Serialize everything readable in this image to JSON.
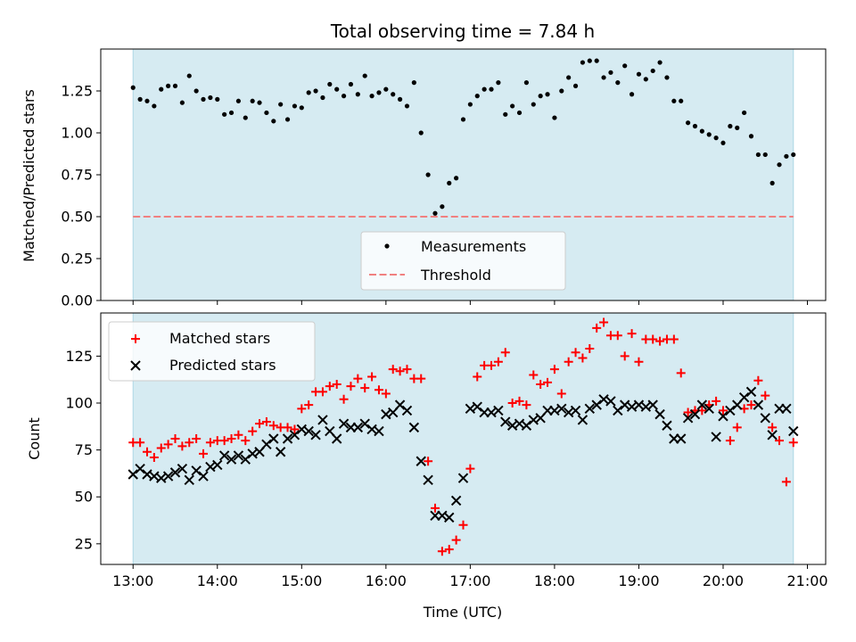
{
  "chart_data": [
    {
      "type": "scatter",
      "title": "Total observing time = 7.84 h",
      "xlabel": "",
      "ylabel": "Matched/Predicted stars",
      "xlim": [
        "12:37",
        "21:13"
      ],
      "ylim": [
        0.0,
        1.5
      ],
      "yticks": [
        0.0,
        0.25,
        0.5,
        0.75,
        1.0,
        1.25
      ],
      "ytick_labels": [
        "0.00",
        "0.25",
        "0.50",
        "0.75",
        "1.00",
        "1.25"
      ],
      "xticks": [
        "13:00",
        "14:00",
        "15:00",
        "16:00",
        "17:00",
        "18:00",
        "19:00",
        "20:00",
        "21:00"
      ],
      "shaded_span": [
        "13:00",
        "20:50"
      ],
      "threshold": 0.5,
      "legend_position": "lower center",
      "series": [
        {
          "name": "Measurements",
          "x": [
            "13:00",
            "13:05",
            "13:10",
            "13:15",
            "13:20",
            "13:25",
            "13:30",
            "13:35",
            "13:40",
            "13:45",
            "13:50",
            "13:55",
            "14:00",
            "14:05",
            "14:10",
            "14:15",
            "14:20",
            "14:25",
            "14:30",
            "14:35",
            "14:40",
            "14:45",
            "14:50",
            "14:55",
            "15:00",
            "15:05",
            "15:10",
            "15:15",
            "15:20",
            "15:25",
            "15:30",
            "15:35",
            "15:40",
            "15:45",
            "15:50",
            "15:55",
            "16:00",
            "16:05",
            "16:10",
            "16:15",
            "16:20",
            "16:25",
            "16:30",
            "16:35",
            "16:40",
            "16:45",
            "16:50",
            "16:55",
            "17:00",
            "17:05",
            "17:10",
            "17:15",
            "17:20",
            "17:25",
            "17:30",
            "17:35",
            "17:40",
            "17:45",
            "17:50",
            "17:55",
            "18:00",
            "18:05",
            "18:10",
            "18:15",
            "18:20",
            "18:25",
            "18:30",
            "18:35",
            "18:40",
            "18:45",
            "18:50",
            "18:55",
            "19:00",
            "19:05",
            "19:10",
            "19:15",
            "19:20",
            "19:25",
            "19:30",
            "19:35",
            "19:40",
            "19:45",
            "19:50",
            "19:55",
            "20:00",
            "20:05",
            "20:10",
            "20:15",
            "20:20",
            "20:25",
            "20:30",
            "20:35",
            "20:40",
            "20:45",
            "20:50"
          ],
          "y": [
            1.27,
            1.2,
            1.19,
            1.16,
            1.26,
            1.28,
            1.28,
            1.18,
            1.34,
            1.25,
            1.2,
            1.21,
            1.2,
            1.11,
            1.12,
            1.19,
            1.09,
            1.19,
            1.18,
            1.12,
            1.07,
            1.17,
            1.08,
            1.16,
            1.15,
            1.24,
            1.25,
            1.21,
            1.29,
            1.26,
            1.22,
            1.29,
            1.23,
            1.34,
            1.22,
            1.24,
            1.26,
            1.23,
            1.2,
            1.16,
            1.3,
            1.0,
            0.75,
            0.52,
            0.56,
            0.7,
            0.73,
            1.08,
            1.17,
            1.22,
            1.26,
            1.26,
            1.3,
            1.11,
            1.16,
            1.12,
            1.3,
            1.17,
            1.22,
            1.23,
            1.09,
            1.25,
            1.33,
            1.28,
            1.42,
            1.43,
            1.43,
            1.33,
            1.36,
            1.3,
            1.4,
            1.23,
            1.35,
            1.32,
            1.37,
            1.42,
            1.33,
            1.19,
            1.19,
            1.06,
            1.04,
            1.01,
            0.99,
            0.97,
            0.94,
            1.04,
            1.03,
            1.12,
            0.98,
            0.87,
            0.87,
            0.7,
            0.81,
            0.86,
            0.87
          ]
        },
        {
          "name": "Threshold",
          "x": [
            "13:00",
            "20:50"
          ],
          "y": [
            0.5,
            0.5
          ]
        }
      ]
    },
    {
      "type": "scatter",
      "title": "",
      "xlabel": "Time (UTC)",
      "ylabel": "Count",
      "xlim": [
        "12:37",
        "21:13"
      ],
      "ylim": [
        14,
        148
      ],
      "yticks": [
        25,
        50,
        75,
        100,
        125
      ],
      "ytick_labels": [
        "25",
        "50",
        "75",
        "100",
        "125"
      ],
      "xticks": [
        "13:00",
        "14:00",
        "15:00",
        "16:00",
        "17:00",
        "18:00",
        "19:00",
        "20:00",
        "21:00"
      ],
      "xtick_labels": [
        "13:00",
        "14:00",
        "15:00",
        "16:00",
        "17:00",
        "18:00",
        "19:00",
        "20:00",
        "21:00"
      ],
      "shaded_span": [
        "13:00",
        "20:50"
      ],
      "legend_position": "upper left",
      "series": [
        {
          "name": "Matched stars",
          "x": [
            "13:00",
            "13:05",
            "13:10",
            "13:15",
            "13:20",
            "13:25",
            "13:30",
            "13:35",
            "13:40",
            "13:45",
            "13:50",
            "13:55",
            "14:00",
            "14:05",
            "14:10",
            "14:15",
            "14:20",
            "14:25",
            "14:30",
            "14:35",
            "14:40",
            "14:45",
            "14:50",
            "14:55",
            "15:00",
            "15:05",
            "15:10",
            "15:15",
            "15:20",
            "15:25",
            "15:30",
            "15:35",
            "15:40",
            "15:45",
            "15:50",
            "15:55",
            "16:00",
            "16:05",
            "16:10",
            "16:15",
            "16:20",
            "16:25",
            "16:30",
            "16:35",
            "16:40",
            "16:45",
            "16:50",
            "16:55",
            "17:00",
            "17:05",
            "17:10",
            "17:15",
            "17:20",
            "17:25",
            "17:30",
            "17:35",
            "17:40",
            "17:45",
            "17:50",
            "17:55",
            "18:00",
            "18:05",
            "18:10",
            "18:15",
            "18:20",
            "18:25",
            "18:30",
            "18:35",
            "18:40",
            "18:45",
            "18:50",
            "18:55",
            "19:00",
            "19:05",
            "19:10",
            "19:15",
            "19:20",
            "19:25",
            "19:30",
            "19:35",
            "19:40",
            "19:45",
            "19:50",
            "19:55",
            "20:00",
            "20:05",
            "20:10",
            "20:15",
            "20:20",
            "20:25",
            "20:30",
            "20:35",
            "20:40",
            "20:45",
            "20:50"
          ],
          "y": [
            79,
            79,
            74,
            71,
            76,
            78,
            81,
            77,
            79,
            81,
            73,
            79,
            80,
            80,
            81,
            83,
            80,
            85,
            89,
            90,
            88,
            87,
            87,
            86,
            97,
            99,
            106,
            106,
            109,
            110,
            102,
            109,
            113,
            108,
            114,
            107,
            105,
            118,
            117,
            118,
            113,
            113,
            69,
            44,
            21,
            22,
            27,
            35,
            65,
            114,
            120,
            120,
            122,
            127,
            100,
            101,
            99,
            115,
            110,
            111,
            118,
            105,
            122,
            127,
            124,
            129,
            140,
            143,
            136,
            136,
            125,
            137,
            122,
            134,
            134,
            133,
            134,
            134,
            116,
            95,
            96,
            96,
            99,
            101,
            96,
            80,
            87,
            97,
            99,
            112,
            104,
            87,
            80,
            58,
            79
          ]
        },
        {
          "name": "Predicted stars",
          "x": [
            "13:00",
            "13:05",
            "13:10",
            "13:15",
            "13:20",
            "13:25",
            "13:30",
            "13:35",
            "13:40",
            "13:45",
            "13:50",
            "13:55",
            "14:00",
            "14:05",
            "14:10",
            "14:15",
            "14:20",
            "14:25",
            "14:30",
            "14:35",
            "14:40",
            "14:45",
            "14:50",
            "14:55",
            "15:00",
            "15:05",
            "15:10",
            "15:15",
            "15:20",
            "15:25",
            "15:30",
            "15:35",
            "15:40",
            "15:45",
            "15:50",
            "15:55",
            "16:00",
            "16:05",
            "16:10",
            "16:15",
            "16:20",
            "16:25",
            "16:30",
            "16:35",
            "16:40",
            "16:45",
            "16:50",
            "16:55",
            "17:00",
            "17:05",
            "17:10",
            "17:15",
            "17:20",
            "17:25",
            "17:30",
            "17:35",
            "17:40",
            "17:45",
            "17:50",
            "17:55",
            "18:00",
            "18:05",
            "18:10",
            "18:15",
            "18:20",
            "18:25",
            "18:30",
            "18:35",
            "18:40",
            "18:45",
            "18:50",
            "18:55",
            "19:00",
            "19:05",
            "19:10",
            "19:15",
            "19:20",
            "19:25",
            "19:30",
            "19:35",
            "19:40",
            "19:45",
            "19:50",
            "19:55",
            "20:00",
            "20:05",
            "20:10",
            "20:15",
            "20:20",
            "20:25",
            "20:30",
            "20:35",
            "20:40",
            "20:45",
            "20:50"
          ],
          "y": [
            62,
            65,
            62,
            61,
            60,
            61,
            63,
            65,
            59,
            64,
            61,
            66,
            67,
            72,
            70,
            72,
            70,
            73,
            74,
            78,
            81,
            74,
            81,
            83,
            86,
            85,
            83,
            91,
            85,
            81,
            89,
            87,
            87,
            89,
            86,
            85,
            94,
            95,
            99,
            96,
            87,
            69,
            59,
            40,
            40,
            39,
            48,
            60,
            97,
            98,
            95,
            95,
            96,
            90,
            88,
            89,
            88,
            91,
            92,
            96,
            96,
            97,
            95,
            96,
            91,
            97,
            99,
            102,
            101,
            96,
            99,
            98,
            99,
            98,
            99,
            94,
            88,
            81,
            81,
            92,
            94,
            99,
            97,
            82,
            93,
            96,
            99,
            103,
            106,
            99,
            92,
            83,
            97,
            97,
            85
          ]
        }
      ]
    }
  ]
}
